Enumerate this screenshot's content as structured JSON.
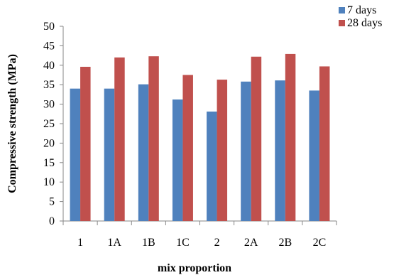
{
  "chart_data": {
    "type": "bar",
    "title": "",
    "xlabel": "mix proportion",
    "ylabel": "Compressive strength (MPa)",
    "categories": [
      "1",
      "1A",
      "1B",
      "1C",
      "2",
      "2A",
      "2B",
      "2C"
    ],
    "ylim": [
      0,
      50
    ],
    "yticks": [
      0,
      5,
      10,
      15,
      20,
      25,
      30,
      35,
      40,
      45,
      50
    ],
    "grid": false,
    "legend_position": "top-right",
    "series": [
      {
        "name": "7 days",
        "color": "#4F81BD",
        "values": [
          34.0,
          34.0,
          35.1,
          31.2,
          28.1,
          35.8,
          36.1,
          33.5
        ]
      },
      {
        "name": "28 days",
        "color": "#C0504D",
        "values": [
          39.6,
          42.0,
          42.3,
          37.5,
          36.3,
          42.2,
          42.9,
          39.7
        ]
      }
    ]
  }
}
